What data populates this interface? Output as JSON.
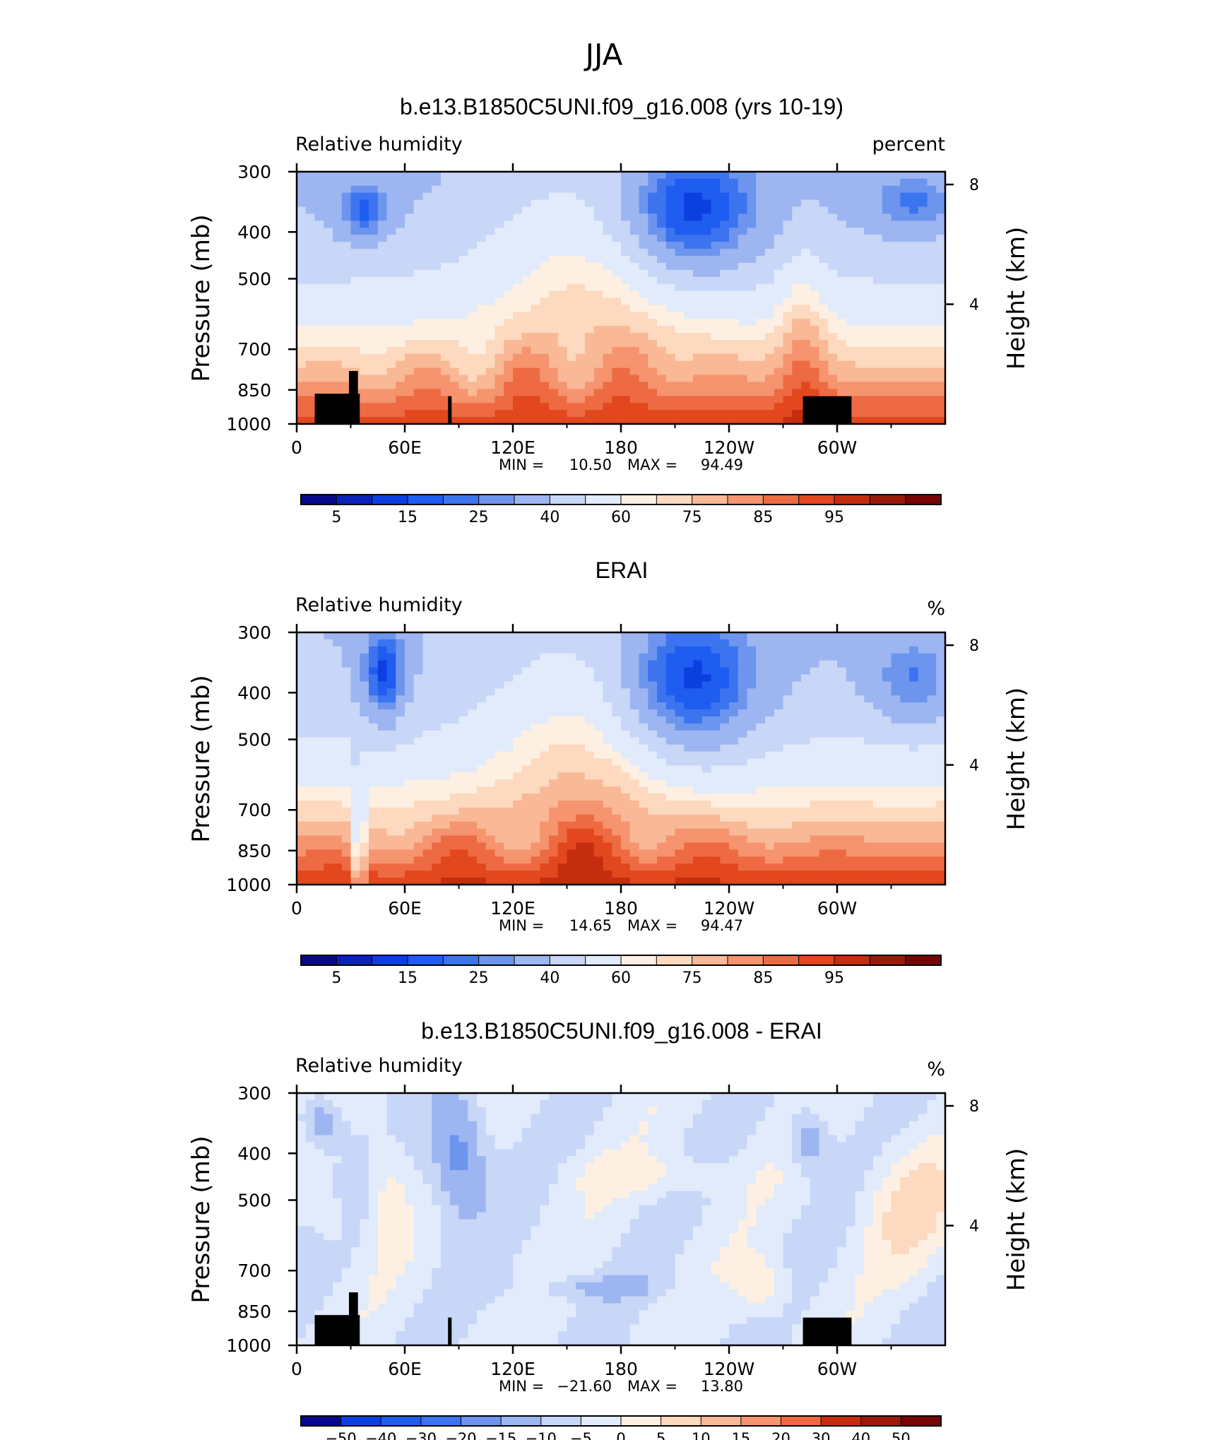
{
  "figure": {
    "title": "JJA"
  },
  "colors": {
    "rh_palette": [
      "#08088a",
      "#0a22b8",
      "#0c3fe0",
      "#1f5cf0",
      "#3b74ee",
      "#6d95ee",
      "#9db6f2",
      "#c8d6f7",
      "#e1ebfb",
      "#fdf0e2",
      "#fcd9bf",
      "#f9b896",
      "#f5946e",
      "#ee6a43",
      "#e2471e",
      "#c52d0f",
      "#9a1a07",
      "#780404"
    ],
    "land": "#000000"
  },
  "chart_data": [
    {
      "type": "heatmap",
      "title": "b.e13.B1850C5UNI.f09_g16.008 (yrs 10-19)",
      "variable_label": "Relative humidity",
      "units_label": "percent",
      "ylabel": "Pressure (mb)",
      "ylabel_right": "Height (km)",
      "x_ticks": [
        "0",
        "60E",
        "120E",
        "180",
        "120W",
        "60W"
      ],
      "y_ticks": [
        "300",
        "400",
        "500",
        "700",
        "850",
        "1000"
      ],
      "y_right_ticks": [
        "8",
        "4"
      ],
      "stats": {
        "min_label": "MIN =",
        "min": "10.50",
        "max_label": "MAX =",
        "max": "94.49"
      },
      "colorbar_labels": [
        "5",
        "15",
        "25",
        "40",
        "60",
        "75",
        "85",
        "95"
      ],
      "levels": [
        5,
        10,
        15,
        20,
        25,
        30,
        40,
        50,
        60,
        65,
        70,
        75,
        80,
        85,
        90,
        95,
        100
      ],
      "min_value": 10.5,
      "max_value": 94.49,
      "surface_land": true
    },
    {
      "type": "heatmap",
      "title": "ERAI",
      "variable_label": "Relative humidity",
      "units_label": "%",
      "ylabel": "Pressure (mb)",
      "ylabel_right": "Height (km)",
      "x_ticks": [
        "0",
        "60E",
        "120E",
        "180",
        "120W",
        "60W"
      ],
      "y_ticks": [
        "300",
        "400",
        "500",
        "700",
        "850",
        "1000"
      ],
      "y_right_ticks": [
        "8",
        "4"
      ],
      "stats": {
        "min_label": "MIN =",
        "min": "14.65",
        "max_label": "MAX =",
        "max": "94.47"
      },
      "colorbar_labels": [
        "5",
        "15",
        "25",
        "40",
        "60",
        "75",
        "85",
        "95"
      ],
      "levels": [
        5,
        10,
        15,
        20,
        25,
        30,
        40,
        50,
        60,
        65,
        70,
        75,
        80,
        85,
        90,
        95,
        100
      ],
      "min_value": 14.65,
      "max_value": 94.47,
      "surface_land": false
    },
    {
      "type": "heatmap",
      "title": "b.e13.B1850C5UNI.f09_g16.008 - ERAI",
      "variable_label": "Relative humidity",
      "units_label": "%",
      "ylabel": "Pressure (mb)",
      "ylabel_right": "Height (km)",
      "x_ticks": [
        "0",
        "60E",
        "120E",
        "180",
        "120W",
        "60W"
      ],
      "y_ticks": [
        "300",
        "400",
        "500",
        "700",
        "850",
        "1000"
      ],
      "y_right_ticks": [
        "8",
        "4"
      ],
      "stats": {
        "min_label": "MIN =",
        "min": "−21.60",
        "max_label": "MAX =",
        "max": "13.80"
      },
      "colorbar_labels": [
        "−50",
        "−40",
        "−30",
        "−20",
        "−15",
        "−10",
        "−5",
        "0",
        "5",
        "10",
        "15",
        "20",
        "30",
        "40",
        "50"
      ],
      "levels": [
        -50,
        -40,
        -30,
        -20,
        -15,
        -10,
        -5,
        0,
        5,
        10,
        15,
        20,
        30,
        40,
        50
      ],
      "min_value": -21.6,
      "max_value": 13.8,
      "surface_land": true
    }
  ]
}
